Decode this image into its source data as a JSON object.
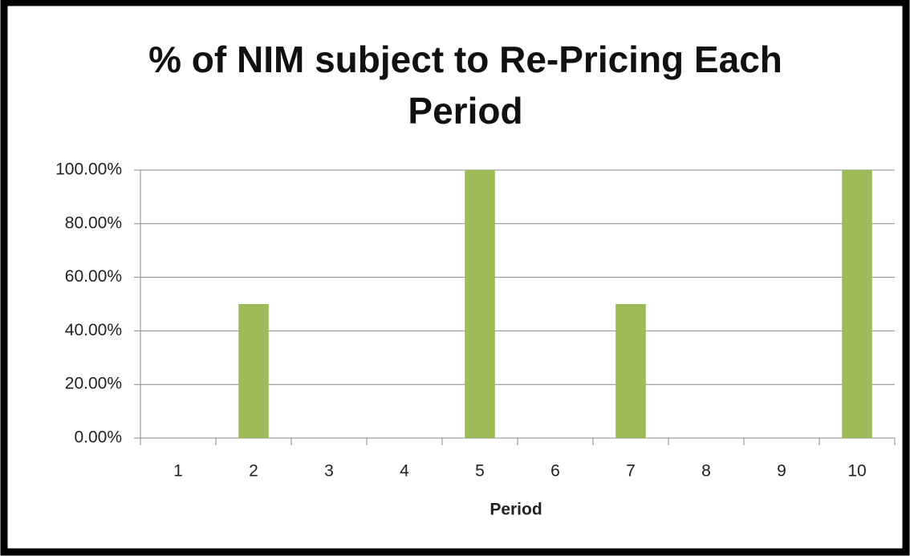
{
  "chart_data": {
    "type": "bar",
    "title": "% of NIM subject to Re-Pricing Each Period",
    "x_label": "Period",
    "categories": [
      "1",
      "2",
      "3",
      "4",
      "5",
      "6",
      "7",
      "8",
      "9",
      "10"
    ],
    "values": [
      0,
      50,
      0,
      0,
      100,
      0,
      50,
      0,
      0,
      100
    ],
    "color": "#9bbb59",
    "ylim": [
      0,
      100
    ],
    "yticks": [
      {
        "value": 0,
        "label": "0.00%"
      },
      {
        "value": 20,
        "label": "20.00%"
      },
      {
        "value": 40,
        "label": "40.00%"
      },
      {
        "value": 60,
        "label": "60.00%"
      },
      {
        "value": 80,
        "label": "80.00%"
      },
      {
        "value": 100,
        "label": "100.00%"
      }
    ],
    "grid": true
  }
}
